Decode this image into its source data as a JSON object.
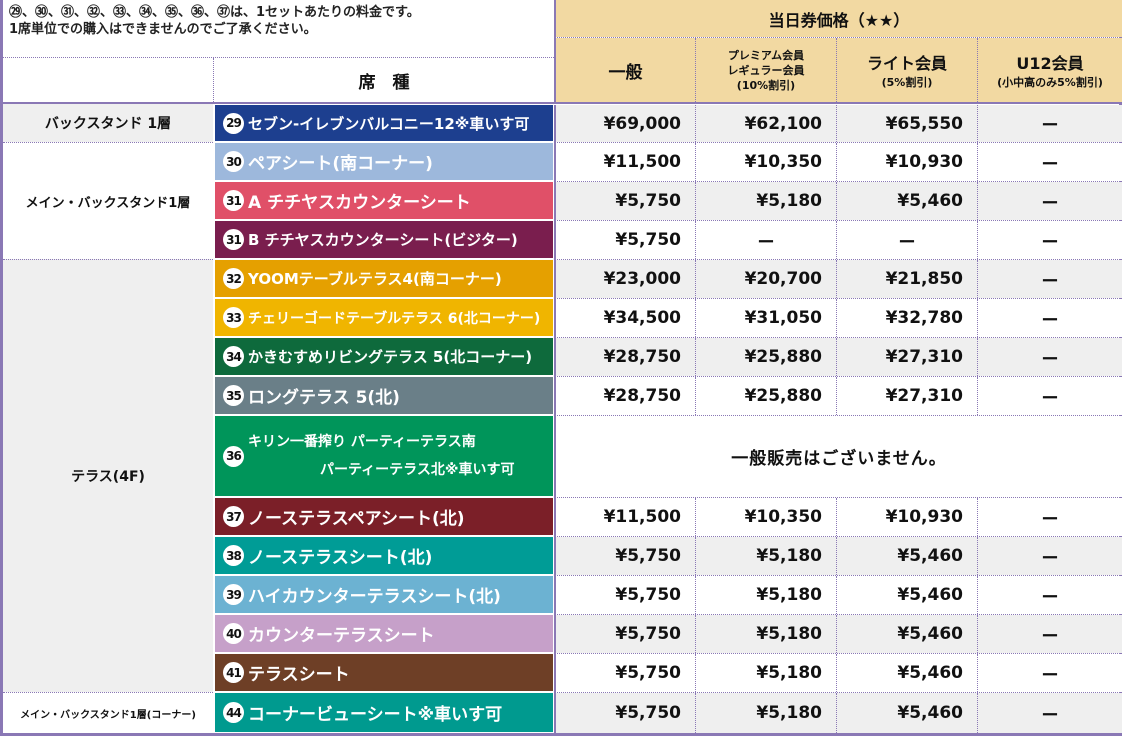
{
  "notes": {
    "line1": "㉙、㉚、㉛、㉜、㉝、㉞、㉟、㊱、㊲は、1セットあたりの料金です。",
    "line2": "1席単位での購入はできませんのでご了承ください。"
  },
  "header": {
    "group": "当日券価格（★★）",
    "seat_type": "席　種",
    "ippan": "一般",
    "premium_l1": "プレミアム会員",
    "premium_l2": "レギュラー会員",
    "premium_l3": "(10%割引)",
    "light_l1": "ライト会員",
    "light_l2": "(5%割引)",
    "u12_l1": "U12会員",
    "u12_l2": "(小中高のみ5%割引)"
  },
  "areas": {
    "back1": "バックスタンド 1層",
    "mainback": "メイン・バックスタンド1層",
    "terrace": "テラス(4F)",
    "corner": "メイン・バックスタンド1層(コーナー)"
  },
  "no_sale_text": "一般販売はございません。",
  "colors": {
    "header": "#f2d9a2",
    "border": "#8a78b5"
  },
  "rows": [
    {
      "num": "29",
      "name": "セブン-イレブンバルコニー12※車いす可",
      "color": "#1d3f8f",
      "ippan": "¥69,000",
      "premium": "¥62,100",
      "light": "¥65,550",
      "u12": "ー"
    },
    {
      "num": "30",
      "name": "ペアシート(南コーナー)",
      "color": "#9db8dc",
      "ippan": "¥11,500",
      "premium": "¥10,350",
      "light": "¥10,930",
      "u12": "ー"
    },
    {
      "num": "31",
      "name": "A チチヤスカウンターシート",
      "color": "#e05068",
      "ippan": "¥5,750",
      "premium": "¥5,180",
      "light": "¥5,460",
      "u12": "ー"
    },
    {
      "num": "31",
      "name": "B チチヤスカウンターシート(ビジター)",
      "color": "#7a1e4e",
      "ippan": "¥5,750",
      "premium": "ー",
      "light": "ー",
      "u12": "ー"
    },
    {
      "num": "32",
      "name": "YOOMテーブルテラス4(南コーナー)",
      "color": "#e5a000",
      "ippan": "¥23,000",
      "premium": "¥20,700",
      "light": "¥21,850",
      "u12": "ー"
    },
    {
      "num": "33",
      "name": "チェリーゴードテーブルテラス 6(北コーナー)",
      "color": "#f0b500",
      "ippan": "¥34,500",
      "premium": "¥31,050",
      "light": "¥32,780",
      "u12": "ー"
    },
    {
      "num": "34",
      "name": "かきむすめリビングテラス 5(北コーナー)",
      "color": "#0e6a3c",
      "ippan": "¥28,750",
      "premium": "¥25,880",
      "light": "¥27,310",
      "u12": "ー"
    },
    {
      "num": "35",
      "name": "ロングテラス 5(北)",
      "color": "#6a7f88",
      "ippan": "¥28,750",
      "premium": "¥25,880",
      "light": "¥27,310",
      "u12": "ー"
    },
    {
      "num": "36",
      "name_l1": "キリン一番搾り パーティーテラス南",
      "name_l2": "パーティーテラス北※車いす可",
      "color": "#00955a"
    },
    {
      "num": "37",
      "name": "ノーステラスペアシート(北)",
      "color": "#7b1f28",
      "ippan": "¥11,500",
      "premium": "¥10,350",
      "light": "¥10,930",
      "u12": "ー"
    },
    {
      "num": "38",
      "name": "ノーステラスシート(北)",
      "color": "#009c96",
      "ippan": "¥5,750",
      "premium": "¥5,180",
      "light": "¥5,460",
      "u12": "ー"
    },
    {
      "num": "39",
      "name": "ハイカウンターテラスシート(北)",
      "color": "#6cb2d2",
      "ippan": "¥5,750",
      "premium": "¥5,180",
      "light": "¥5,460",
      "u12": "ー"
    },
    {
      "num": "40",
      "name": "カウンターテラスシート",
      "color": "#c6a0c9",
      "ippan": "¥5,750",
      "premium": "¥5,180",
      "light": "¥5,460",
      "u12": "ー"
    },
    {
      "num": "41",
      "name": "テラスシート",
      "color": "#6e3f26",
      "ippan": "¥5,750",
      "premium": "¥5,180",
      "light": "¥5,460",
      "u12": "ー"
    },
    {
      "num": "44",
      "name": "コーナービューシート※車いす可",
      "color": "#009a8f",
      "ippan": "¥5,750",
      "premium": "¥5,180",
      "light": "¥5,460",
      "u12": "ー"
    }
  ]
}
